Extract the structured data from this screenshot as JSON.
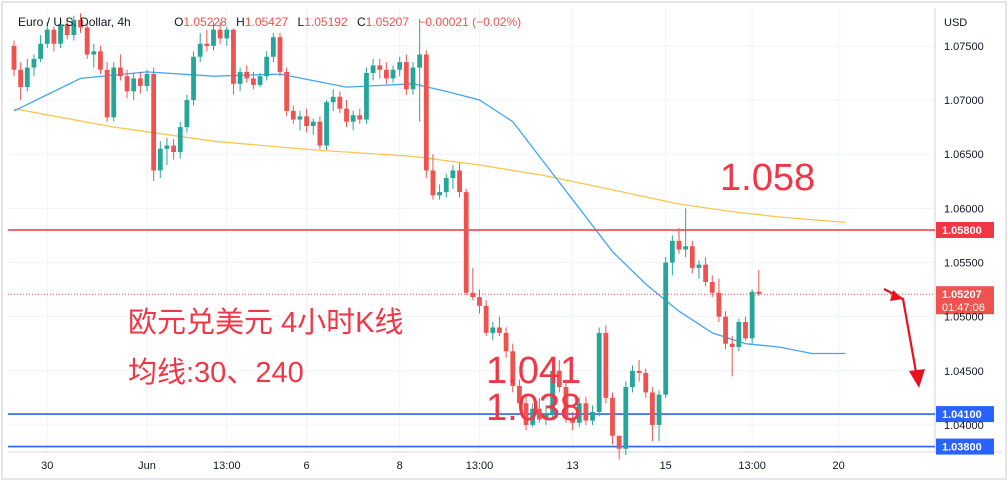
{
  "header": {
    "symbol": "Euro / U.S. Dollar, 4h",
    "open_label": "O",
    "open": "1.05228",
    "high_label": "H",
    "high": "1.05427",
    "low_label": "L",
    "low": "1.05192",
    "close_label": "C",
    "close": "1.05207",
    "change": "−0.00021 (−0.02%)"
  },
  "colors": {
    "up": "#26a69a",
    "down": "#ef5350",
    "ma30": "#42a5f5",
    "ma240": "#f9c74f",
    "resistance": "#f23645",
    "support": "#2962ff",
    "annotation": "#f23645"
  },
  "chart_data": {
    "type": "candlestick",
    "title": "Euro / U.S. Dollar, 4h",
    "currency": "USD",
    "ylim": [
      1.0375,
      1.0785
    ],
    "y_ticks": [
      "1.07500",
      "1.07000",
      "1.06500",
      "1.06000",
      "1.05500",
      "1.05000",
      "1.04500",
      "1.04000"
    ],
    "x_ticks": [
      {
        "i": 5,
        "label": "30"
      },
      {
        "i": 20,
        "label": "Jun"
      },
      {
        "i": 32,
        "label": "13:00"
      },
      {
        "i": 44,
        "label": "6"
      },
      {
        "i": 58,
        "label": "8"
      },
      {
        "i": 70,
        "label": "13:00"
      },
      {
        "i": 84,
        "label": "13"
      },
      {
        "i": 98,
        "label": "15"
      },
      {
        "i": 111,
        "label": "13:00"
      },
      {
        "i": 124,
        "label": "20"
      }
    ],
    "candles": [
      [
        1.075,
        1.0755,
        1.0722,
        1.0728
      ],
      [
        1.0728,
        1.0735,
        1.07,
        1.0712
      ],
      [
        1.0712,
        1.0738,
        1.0708,
        1.073
      ],
      [
        1.073,
        1.0742,
        1.0722,
        1.0738
      ],
      [
        1.0738,
        1.076,
        1.0735,
        1.0752
      ],
      [
        1.0752,
        1.0772,
        1.0748,
        1.0765
      ],
      [
        1.0765,
        1.0768,
        1.0745,
        1.0752
      ],
      [
        1.0752,
        1.0775,
        1.0748,
        1.077
      ],
      [
        1.077,
        1.0775,
        1.0756,
        1.076
      ],
      [
        1.076,
        1.0778,
        1.0755,
        1.0774
      ],
      [
        1.0774,
        1.078,
        1.0762,
        1.0767
      ],
      [
        1.0767,
        1.077,
        1.0738,
        1.0742
      ],
      [
        1.0742,
        1.0752,
        1.073,
        1.0745
      ],
      [
        1.0745,
        1.075,
        1.0724,
        1.0728
      ],
      [
        1.0728,
        1.0735,
        1.068,
        1.0684
      ],
      [
        1.0684,
        1.0735,
        1.068,
        1.073
      ],
      [
        1.073,
        1.0742,
        1.0718,
        1.0722
      ],
      [
        1.0722,
        1.0728,
        1.0702,
        1.0708
      ],
      [
        1.0708,
        1.0725,
        1.07,
        1.072
      ],
      [
        1.072,
        1.0726,
        1.0706,
        1.0713
      ],
      [
        1.0713,
        1.0728,
        1.0708,
        1.0724
      ],
      [
        1.0724,
        1.073,
        1.0625,
        1.0635
      ],
      [
        1.0635,
        1.0662,
        1.0628,
        1.0655
      ],
      [
        1.0655,
        1.0665,
        1.064,
        1.0658
      ],
      [
        1.0658,
        1.0664,
        1.0645,
        1.0652
      ],
      [
        1.0652,
        1.068,
        1.0646,
        1.0675
      ],
      [
        1.0675,
        1.0705,
        1.067,
        1.07
      ],
      [
        1.07,
        1.0745,
        1.0695,
        1.074
      ],
      [
        1.074,
        1.0762,
        1.0735,
        1.0752
      ],
      [
        1.0752,
        1.0765,
        1.0745,
        1.075
      ],
      [
        1.075,
        1.0772,
        1.0746,
        1.0765
      ],
      [
        1.0765,
        1.0772,
        1.0752,
        1.0757
      ],
      [
        1.0757,
        1.0768,
        1.075,
        1.0765
      ],
      [
        1.0765,
        1.0766,
        1.0705,
        1.0715
      ],
      [
        1.0715,
        1.073,
        1.0708,
        1.0726
      ],
      [
        1.0726,
        1.0732,
        1.0716,
        1.072
      ],
      [
        1.072,
        1.0726,
        1.071,
        1.0714
      ],
      [
        1.0714,
        1.0725,
        1.0712,
        1.0722
      ],
      [
        1.0722,
        1.0745,
        1.0718,
        1.074
      ],
      [
        1.074,
        1.0762,
        1.0735,
        1.0758
      ],
      [
        1.0758,
        1.0762,
        1.0722,
        1.0726
      ],
      [
        1.0726,
        1.073,
        1.0685,
        1.069
      ],
      [
        1.069,
        1.0695,
        1.0678,
        1.0682
      ],
      [
        1.0682,
        1.069,
        1.0672,
        1.0685
      ],
      [
        1.0685,
        1.0692,
        1.067,
        1.0676
      ],
      [
        1.0676,
        1.0683,
        1.0668,
        1.068
      ],
      [
        1.068,
        1.0685,
        1.0655,
        1.0658
      ],
      [
        1.0658,
        1.07,
        1.0654,
        1.0698
      ],
      [
        1.0698,
        1.071,
        1.069,
        1.0703
      ],
      [
        1.0703,
        1.0708,
        1.0688,
        1.0692
      ],
      [
        1.0692,
        1.07,
        1.0675,
        1.068
      ],
      [
        1.068,
        1.069,
        1.0672,
        1.0686
      ],
      [
        1.0686,
        1.0692,
        1.0678,
        1.0682
      ],
      [
        1.0682,
        1.073,
        1.0678,
        1.0725
      ],
      [
        1.0725,
        1.0738,
        1.0718,
        1.0732
      ],
      [
        1.0732,
        1.0738,
        1.072,
        1.0728
      ],
      [
        1.0728,
        1.0735,
        1.0715,
        1.072
      ],
      [
        1.072,
        1.0732,
        1.0716,
        1.0728
      ],
      [
        1.0728,
        1.074,
        1.0722,
        1.0735
      ],
      [
        1.0735,
        1.0742,
        1.0705,
        1.071
      ],
      [
        1.071,
        1.0735,
        1.0705,
        1.073
      ],
      [
        1.073,
        1.0775,
        1.068,
        1.0742
      ],
      [
        1.0742,
        1.0746,
        1.0628,
        1.0635
      ],
      [
        1.0635,
        1.065,
        1.0608,
        1.0612
      ],
      [
        1.0612,
        1.0622,
        1.0608,
        1.0615
      ],
      [
        1.0615,
        1.0632,
        1.061,
        1.0628
      ],
      [
        1.0628,
        1.064,
        1.0618,
        1.0635
      ],
      [
        1.0635,
        1.0642,
        1.061,
        1.0615
      ],
      [
        1.0615,
        1.0618,
        1.052,
        1.0522
      ],
      [
        1.0522,
        1.0545,
        1.0515,
        1.0518
      ],
      [
        1.0518,
        1.0525,
        1.0503,
        1.051
      ],
      [
        1.051,
        1.0515,
        1.0482,
        1.0485
      ],
      [
        1.0485,
        1.0495,
        1.0478,
        1.049
      ],
      [
        1.049,
        1.05,
        1.0482,
        1.0485
      ],
      [
        1.0485,
        1.049,
        1.0462,
        1.0468
      ],
      [
        1.0468,
        1.0475,
        1.043,
        1.0436
      ],
      [
        1.0436,
        1.0442,
        1.0415,
        1.042
      ],
      [
        1.042,
        1.0428,
        1.0395,
        1.04
      ],
      [
        1.04,
        1.042,
        1.0398,
        1.0415
      ],
      [
        1.0415,
        1.0425,
        1.0402,
        1.0405
      ],
      [
        1.0405,
        1.0418,
        1.04,
        1.041
      ],
      [
        1.041,
        1.0455,
        1.0405,
        1.045
      ],
      [
        1.045,
        1.046,
        1.043,
        1.0435
      ],
      [
        1.0435,
        1.0442,
        1.0402,
        1.0406
      ],
      [
        1.0406,
        1.0412,
        1.0395,
        1.0402
      ],
      [
        1.0402,
        1.0425,
        1.0398,
        1.042
      ],
      [
        1.042,
        1.0426,
        1.04,
        1.0404
      ],
      [
        1.0404,
        1.0418,
        1.04,
        1.0412
      ],
      [
        1.0412,
        1.049,
        1.0408,
        1.0485
      ],
      [
        1.0485,
        1.0492,
        1.042,
        1.0425
      ],
      [
        1.0425,
        1.043,
        1.0382,
        1.039
      ],
      [
        1.039,
        1.0386,
        1.0368,
        1.0378
      ],
      [
        1.0378,
        1.044,
        1.0372,
        1.0435
      ],
      [
        1.0435,
        1.0455,
        1.043,
        1.045
      ],
      [
        1.045,
        1.046,
        1.044,
        1.0448
      ],
      [
        1.0448,
        1.0452,
        1.0425,
        1.043
      ],
      [
        1.043,
        1.0435,
        1.0385,
        1.04
      ],
      [
        1.04,
        1.0432,
        1.0385,
        1.0428
      ],
      [
        1.0428,
        1.0555,
        1.0425,
        1.055
      ],
      [
        1.055,
        1.0575,
        1.0538,
        1.057
      ],
      [
        1.057,
        1.0582,
        1.0558,
        1.0562
      ],
      [
        1.0562,
        1.06,
        1.0555,
        1.0565
      ],
      [
        1.0565,
        1.057,
        1.054,
        1.0545
      ],
      [
        1.0545,
        1.0552,
        1.0535,
        1.0548
      ],
      [
        1.0548,
        1.0555,
        1.0528,
        1.0532
      ],
      [
        1.0532,
        1.0538,
        1.0518,
        1.0522
      ],
      [
        1.0522,
        1.0535,
        1.0495,
        1.05
      ],
      [
        1.05,
        1.0505,
        1.047,
        1.0475
      ],
      [
        1.0475,
        1.0482,
        1.0445,
        1.0472
      ],
      [
        1.0472,
        1.0498,
        1.0468,
        1.0495
      ],
      [
        1.0495,
        1.05,
        1.0478,
        1.048
      ],
      [
        1.048,
        1.0525,
        1.0475,
        1.0523
      ],
      [
        1.0523,
        1.0543,
        1.0519,
        1.0521
      ]
    ],
    "candle_layout": "stretched",
    "ma30": [
      [
        0,
        1.069
      ],
      [
        10,
        1.072
      ],
      [
        20,
        1.0726
      ],
      [
        30,
        1.0722
      ],
      [
        40,
        1.0724
      ],
      [
        50,
        1.0712
      ],
      [
        60,
        1.0715
      ],
      [
        65,
        1.0708
      ],
      [
        70,
        1.07
      ],
      [
        75,
        1.068
      ],
      [
        80,
        1.064
      ],
      [
        85,
        1.06
      ],
      [
        90,
        1.056
      ],
      [
        95,
        1.053
      ],
      [
        100,
        1.0505
      ],
      [
        105,
        1.0485
      ],
      [
        110,
        1.0475
      ],
      [
        115,
        1.0472
      ],
      [
        120,
        1.0466
      ],
      [
        125,
        1.0466
      ]
    ],
    "ma240": [
      [
        0,
        1.0692
      ],
      [
        15,
        1.0675
      ],
      [
        30,
        1.0662
      ],
      [
        45,
        1.0654
      ],
      [
        60,
        1.0648
      ],
      [
        70,
        1.064
      ],
      [
        80,
        1.063
      ],
      [
        90,
        1.0617
      ],
      [
        100,
        1.0604
      ],
      [
        108,
        1.0597
      ],
      [
        115,
        1.0592
      ],
      [
        125,
        1.0587
      ]
    ],
    "levels": [
      {
        "price": 1.058,
        "label": "1.05800",
        "color_key": "resistance"
      },
      {
        "price": 1.041,
        "label": "1.04100",
        "color_key": "support"
      },
      {
        "price": 1.038,
        "label": "1.03800",
        "color_key": "support"
      }
    ],
    "last_price": {
      "price": 1.05207,
      "label": "1.05207",
      "countdown": "01:47:06"
    },
    "annotations": [
      {
        "text": "1.058",
        "kind": "big"
      },
      {
        "text": "1.041",
        "kind": "big"
      },
      {
        "text": "1.038",
        "kind": "big"
      },
      {
        "text": "欧元兑美元 4小时K线",
        "kind": "note"
      },
      {
        "text": "均线:30、240",
        "kind": "note"
      }
    ]
  }
}
